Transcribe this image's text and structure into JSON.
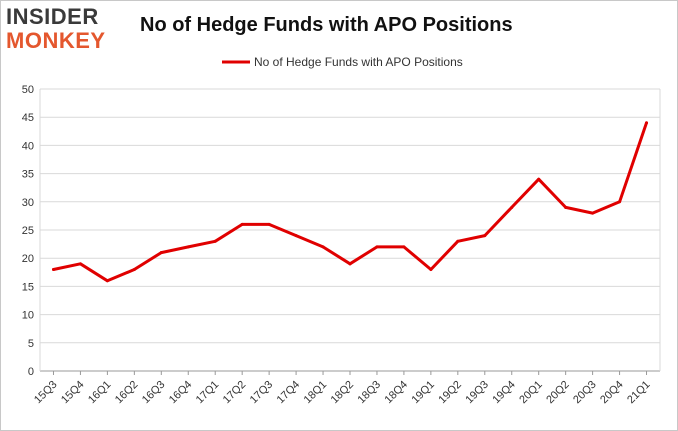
{
  "logo": {
    "line1": "INSIDER",
    "line2": "MONKEY"
  },
  "chart_data": {
    "type": "line",
    "title": "No of Hedge Funds with APO Positions",
    "xlabel": "",
    "ylabel": "",
    "ylim": [
      0,
      50
    ],
    "yticks": [
      0,
      5,
      10,
      15,
      20,
      25,
      30,
      35,
      40,
      45,
      50
    ],
    "grid": true,
    "legend_position": "top-center",
    "categories": [
      "15Q3",
      "15Q4",
      "16Q1",
      "16Q2",
      "16Q3",
      "16Q4",
      "17Q1",
      "17Q2",
      "17Q3",
      "17Q4",
      "18Q1",
      "18Q2",
      "18Q3",
      "18Q4",
      "19Q1",
      "19Q2",
      "19Q3",
      "19Q4",
      "20Q1",
      "20Q2",
      "20Q3",
      "20Q4",
      "21Q1"
    ],
    "series": [
      {
        "name": "No of Hedge Funds with APO Positions",
        "color": "#e00000",
        "values": [
          18,
          19,
          16,
          18,
          21,
          22,
          23,
          26,
          26,
          24,
          22,
          19,
          22,
          22,
          18,
          23,
          24,
          29,
          34,
          29,
          28,
          30,
          44
        ]
      }
    ]
  }
}
